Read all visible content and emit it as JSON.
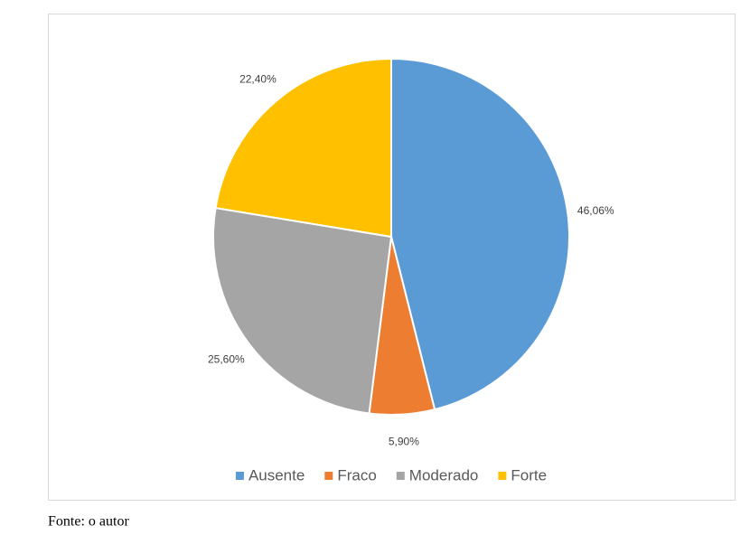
{
  "chart_data": {
    "type": "pie",
    "categories": [
      "Ausente",
      "Fraco",
      "Moderado",
      "Forte"
    ],
    "values": [
      46.06,
      5.9,
      25.6,
      22.4
    ],
    "value_labels": [
      "46,06%",
      "5,90%",
      "25,60%",
      "22,40%"
    ],
    "colors": [
      "#5b9bd5",
      "#ed7d31",
      "#a5a5a5",
      "#ffc000"
    ],
    "legend": "bottom"
  },
  "source": "Fonte: o autor"
}
